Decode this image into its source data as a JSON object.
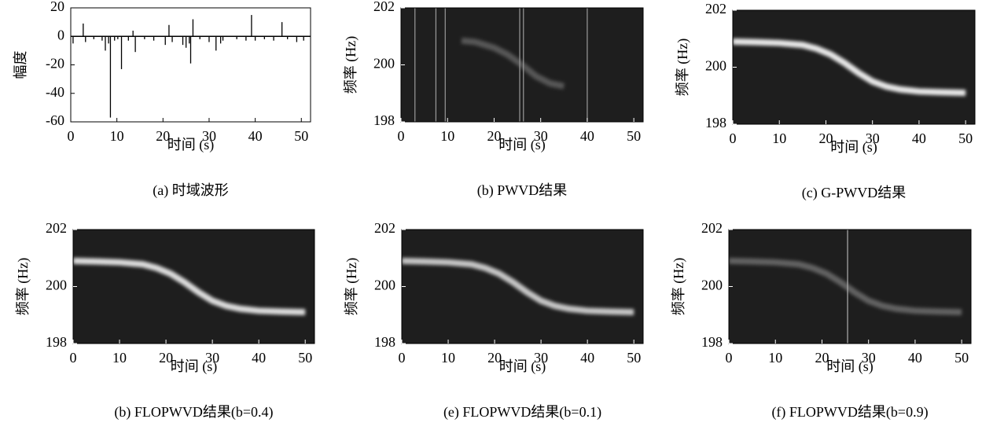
{
  "chart_data": [
    {
      "type": "stem",
      "caption": "(a) 时域波形",
      "xlabel": "时间 (s)",
      "ylabel": "幅度",
      "color": "#000000",
      "x": [
        0.5,
        2.7,
        3.2,
        5,
        6.8,
        7.5,
        8.2,
        8.6,
        9.5,
        10.2,
        11,
        12.5,
        13.5,
        14,
        16,
        18,
        20.5,
        21.3,
        22,
        24.3,
        25,
        25.7,
        26,
        26.5,
        28,
        30,
        31.5,
        32.5,
        33,
        36,
        38,
        39.2,
        40,
        42,
        44,
        45.8,
        47,
        49,
        50.5
      ],
      "values": [
        -5,
        9,
        -4,
        -2,
        -3,
        -10,
        -5,
        -57,
        -3,
        -2,
        -23,
        -3,
        4,
        -11,
        -2,
        -3,
        -6,
        8,
        -4,
        -6,
        -8,
        -5,
        -19,
        12,
        -2,
        -4,
        -10,
        -5,
        -3,
        -2,
        -3,
        15,
        -3,
        -2,
        -3,
        10,
        -2,
        -4,
        -3
      ],
      "xlim": [
        0,
        52
      ],
      "ylim": [
        -60,
        20
      ],
      "xticks": [
        0,
        10,
        20,
        30,
        40,
        50
      ],
      "yticks": [
        -60,
        -40,
        -20,
        0,
        20
      ]
    },
    {
      "type": "spectrogram",
      "caption": "(b) PWVD结果",
      "xlabel": "时间 (s)",
      "ylabel": "频率 (Hz)",
      "color": "#ffffff",
      "brightness": 0.25,
      "ridge_x": [
        13,
        16,
        20,
        23,
        26,
        29,
        32,
        35
      ],
      "ridge_f": [
        200.85,
        200.8,
        200.6,
        200.35,
        200.0,
        199.6,
        199.35,
        199.25
      ],
      "vlines": [
        3,
        7.5,
        9.5,
        25.5,
        26.3,
        40
      ],
      "vline_color": "#9a9a9a",
      "xlim": [
        0,
        52
      ],
      "ylim": [
        198,
        202
      ],
      "xticks": [
        0,
        10,
        20,
        30,
        40,
        50
      ],
      "yticks": [
        198,
        200,
        202
      ]
    },
    {
      "type": "spectrogram",
      "caption": "(c) G-PWVD结果",
      "xlabel": "时间 (s)",
      "ylabel": "频率 (Hz)",
      "color": "#ffffff",
      "brightness": 0.9,
      "ridge_x": [
        0,
        5,
        10,
        15,
        18,
        21,
        24,
        27,
        30,
        33,
        36,
        40,
        45,
        50
      ],
      "ridge_f": [
        200.9,
        200.88,
        200.85,
        200.78,
        200.65,
        200.45,
        200.15,
        199.8,
        199.5,
        199.32,
        199.22,
        199.15,
        199.12,
        199.1
      ],
      "vlines": [],
      "vline_color": "#9a9a9a",
      "xlim": [
        0,
        52
      ],
      "ylim": [
        198,
        202
      ],
      "xticks": [
        0,
        10,
        20,
        30,
        40,
        50
      ],
      "yticks": [
        198,
        200,
        202
      ]
    },
    {
      "type": "spectrogram",
      "caption": "(b) FLOPWVD结果(b=0.4)",
      "xlabel": "时间 (s)",
      "ylabel": "频率 (Hz)",
      "color": "#ffffff",
      "brightness": 0.85,
      "ridge_x": [
        0,
        5,
        10,
        15,
        18,
        21,
        24,
        27,
        30,
        33,
        36,
        40,
        45,
        50
      ],
      "ridge_f": [
        200.9,
        200.88,
        200.85,
        200.78,
        200.65,
        200.45,
        200.15,
        199.8,
        199.5,
        199.32,
        199.22,
        199.15,
        199.12,
        199.1
      ],
      "vlines": [],
      "vline_color": "#9a9a9a",
      "xlim": [
        0,
        52
      ],
      "ylim": [
        198,
        202
      ],
      "xticks": [
        0,
        10,
        20,
        30,
        40,
        50
      ],
      "yticks": [
        198,
        200,
        202
      ]
    },
    {
      "type": "spectrogram",
      "caption": "(e) FLOPWVD结果(b=0.1)",
      "xlabel": "时间 (s)",
      "ylabel": "频率 (Hz)",
      "color": "#ffffff",
      "brightness": 0.75,
      "ridge_x": [
        0,
        5,
        10,
        15,
        18,
        21,
        24,
        27,
        30,
        33,
        36,
        40,
        45,
        50
      ],
      "ridge_f": [
        200.9,
        200.88,
        200.85,
        200.78,
        200.65,
        200.45,
        200.15,
        199.8,
        199.5,
        199.32,
        199.22,
        199.15,
        199.12,
        199.1
      ],
      "vlines": [],
      "vline_color": "#9a9a9a",
      "xlim": [
        0,
        52
      ],
      "ylim": [
        198,
        202
      ],
      "xticks": [
        0,
        10,
        20,
        30,
        40,
        50
      ],
      "yticks": [
        198,
        200,
        202
      ]
    },
    {
      "type": "spectrogram",
      "caption": "(f) FLOPWVD结果(b=0.9)",
      "xlabel": "时间 (s)",
      "ylabel": "频率 (Hz)",
      "color": "#ffffff",
      "brightness": 0.3,
      "ridge_x": [
        0,
        5,
        10,
        15,
        18,
        21,
        24,
        27,
        30,
        33,
        36,
        40,
        45,
        50
      ],
      "ridge_f": [
        200.9,
        200.88,
        200.85,
        200.78,
        200.65,
        200.45,
        200.15,
        199.8,
        199.5,
        199.32,
        199.22,
        199.15,
        199.12,
        199.1
      ],
      "vlines": [
        25.5
      ],
      "vline_color": "#b0b0b0",
      "xlim": [
        0,
        52
      ],
      "ylim": [
        198,
        202
      ],
      "xticks": [
        0,
        10,
        20,
        30,
        40,
        50
      ],
      "yticks": [
        198,
        200,
        202
      ]
    }
  ]
}
